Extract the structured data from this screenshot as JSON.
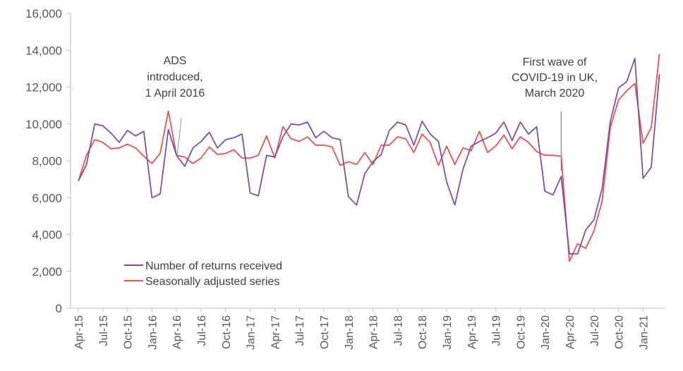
{
  "chart_data": {
    "type": "line",
    "title": "",
    "xlabel": "",
    "ylabel": "",
    "ylim": [
      0,
      16000
    ],
    "yticks": [
      0,
      2000,
      4000,
      6000,
      8000,
      10000,
      12000,
      14000,
      16000
    ],
    "ytick_labels": [
      "0",
      "2,000",
      "4,000",
      "6,000",
      "8,000",
      "10,000",
      "12,000",
      "14,000",
      "16,000"
    ],
    "grid": false,
    "legend_position": "bottom-left",
    "x": [
      "Apr-15",
      "May-15",
      "Jun-15",
      "Jul-15",
      "Aug-15",
      "Sep-15",
      "Oct-15",
      "Nov-15",
      "Dec-15",
      "Jan-16",
      "Feb-16",
      "Mar-16",
      "Apr-16",
      "May-16",
      "Jun-16",
      "Jul-16",
      "Aug-16",
      "Sep-16",
      "Oct-16",
      "Nov-16",
      "Dec-16",
      "Jan-17",
      "Feb-17",
      "Mar-17",
      "Apr-17",
      "May-17",
      "Jun-17",
      "Jul-17",
      "Aug-17",
      "Sep-17",
      "Oct-17",
      "Nov-17",
      "Dec-17",
      "Jan-18",
      "Feb-18",
      "Mar-18",
      "Apr-18",
      "May-18",
      "Jun-18",
      "Jul-18",
      "Aug-18",
      "Sep-18",
      "Oct-18",
      "Nov-18",
      "Dec-18",
      "Jan-19",
      "Feb-19",
      "Mar-19",
      "Apr-19",
      "May-19",
      "Jun-19",
      "Jul-19",
      "Aug-19",
      "Sep-19",
      "Oct-19",
      "Nov-19",
      "Dec-19",
      "Jan-20",
      "Feb-20",
      "Mar-20",
      "Apr-20",
      "May-20",
      "Jun-20",
      "Jul-20",
      "Aug-20",
      "Sep-20",
      "Oct-20",
      "Nov-20",
      "Dec-20",
      "Jan-21",
      "Feb-21",
      "Mar-21"
    ],
    "xtick_labels": [
      {
        "index": 0,
        "label": "Apr-15"
      },
      {
        "index": 3,
        "label": "Jul-15"
      },
      {
        "index": 6,
        "label": "Oct-15"
      },
      {
        "index": 9,
        "label": "Jan-16"
      },
      {
        "index": 12,
        "label": "Apr-16"
      },
      {
        "index": 15,
        "label": "Jul-16"
      },
      {
        "index": 18,
        "label": "Oct-16"
      },
      {
        "index": 21,
        "label": "Jan-17"
      },
      {
        "index": 24,
        "label": "Apr-17"
      },
      {
        "index": 27,
        "label": "Jul-17"
      },
      {
        "index": 30,
        "label": "Oct-17"
      },
      {
        "index": 33,
        "label": "Jan-18"
      },
      {
        "index": 36,
        "label": "Apr-18"
      },
      {
        "index": 39,
        "label": "Jul-18"
      },
      {
        "index": 42,
        "label": "Oct-18"
      },
      {
        "index": 45,
        "label": "Jan-19"
      },
      {
        "index": 48,
        "label": "Apr-19"
      },
      {
        "index": 51,
        "label": "Jul-19"
      },
      {
        "index": 54,
        "label": "Oct-19"
      },
      {
        "index": 57,
        "label": "Jan-20"
      },
      {
        "index": 60,
        "label": "Apr-20"
      },
      {
        "index": 63,
        "label": "Jul-20"
      },
      {
        "index": 66,
        "label": "Oct-20"
      },
      {
        "index": 69,
        "label": "Jan-21"
      }
    ],
    "series": [
      {
        "name": "Number of returns received",
        "color": "#7f4fa8",
        "values": [
          6900,
          7800,
          10000,
          9900,
          9500,
          9000,
          9650,
          9350,
          9600,
          6000,
          6200,
          9700,
          8300,
          7700,
          8700,
          9050,
          9550,
          8700,
          9150,
          9250,
          9450,
          6250,
          6100,
          8300,
          8200,
          9300,
          10000,
          9950,
          10100,
          9250,
          9600,
          9250,
          9150,
          6050,
          5600,
          7300,
          7950,
          8350,
          9650,
          10100,
          9950,
          8850,
          10150,
          9450,
          9050,
          6850,
          5600,
          7550,
          8800,
          9050,
          9250,
          9500,
          10100,
          9100,
          10100,
          9450,
          9850,
          6350,
          6150,
          7150,
          2950,
          2950,
          4250,
          4800,
          6500,
          10150,
          11950,
          12300,
          13550,
          7050,
          7650,
          12700
        ]
      },
      {
        "name": "Seasonally adjusted series",
        "color": "#f05050",
        "values": [
          6900,
          8300,
          9150,
          9000,
          8650,
          8700,
          8900,
          8700,
          8250,
          7850,
          8400,
          10700,
          8300,
          8200,
          7850,
          8150,
          8750,
          8350,
          8400,
          8600,
          8150,
          8150,
          8300,
          9350,
          8150,
          9850,
          9200,
          9050,
          9300,
          8850,
          8850,
          8750,
          7750,
          7950,
          7800,
          8450,
          7800,
          8850,
          8850,
          9300,
          9200,
          8450,
          9450,
          9000,
          7750,
          8800,
          7800,
          8700,
          8550,
          9600,
          8450,
          8800,
          9400,
          8650,
          9300,
          9000,
          8500,
          8300,
          8300,
          8250,
          2550,
          3500,
          3250,
          4200,
          5800,
          9800,
          11300,
          11800,
          12200,
          8950,
          9800,
          13800
        ]
      }
    ],
    "annotations": [
      {
        "lines": [
          "ADS",
          "introduced,",
          "1 April 2016"
        ],
        "x_index": 12
      },
      {
        "lines": [
          "First wave of",
          "COVID-19 in UK,",
          "March 2020"
        ],
        "x_index": 59
      }
    ]
  }
}
